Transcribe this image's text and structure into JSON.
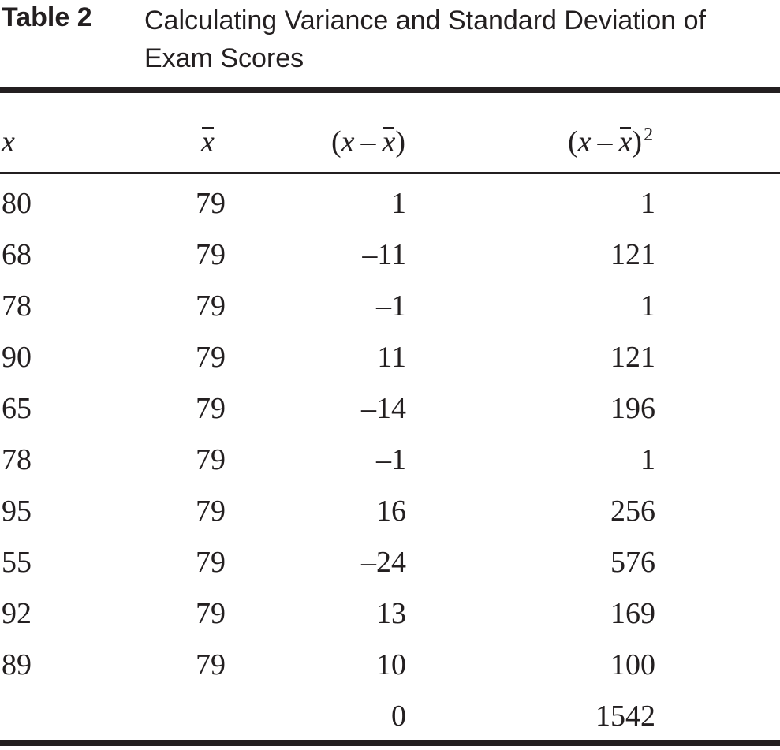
{
  "caption": {
    "label": "Table 2",
    "title": "Calculating Variance and Standard Deviation of Exam Scores"
  },
  "headers": {
    "x": "x",
    "mean": "x",
    "deviation": {
      "open": "(",
      "x": "x",
      "minus": "–",
      "mean": "x",
      "close": ")"
    },
    "squared": {
      "open": "(",
      "x": "x",
      "minus": "–",
      "mean": "x",
      "close": ")",
      "exponent": "2"
    }
  },
  "rows": [
    {
      "x": "80",
      "mean": "79",
      "dev": "1",
      "sq": "1"
    },
    {
      "x": "68",
      "mean": "79",
      "dev": "–11",
      "sq": "121"
    },
    {
      "x": "78",
      "mean": "79",
      "dev": "–1",
      "sq": "1"
    },
    {
      "x": "90",
      "mean": "79",
      "dev": "11",
      "sq": "121"
    },
    {
      "x": "65",
      "mean": "79",
      "dev": "–14",
      "sq": "196"
    },
    {
      "x": "78",
      "mean": "79",
      "dev": "–1",
      "sq": "1"
    },
    {
      "x": "95",
      "mean": "79",
      "dev": "16",
      "sq": "256"
    },
    {
      "x": "55",
      "mean": "79",
      "dev": "–24",
      "sq": "576"
    },
    {
      "x": "92",
      "mean": "79",
      "dev": "13",
      "sq": "169"
    },
    {
      "x": "89",
      "mean": "79",
      "dev": "10",
      "sq": "100"
    }
  ],
  "totals": {
    "dev": "0",
    "sq": "1542"
  }
}
